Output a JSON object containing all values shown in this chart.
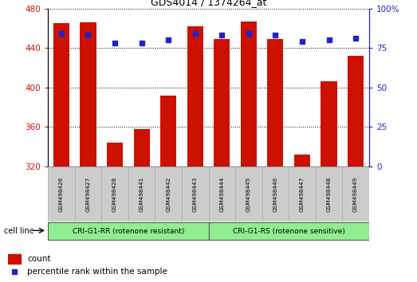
{
  "title": "GDS4014 / 1374264_at",
  "samples": [
    "GSM498426",
    "GSM498427",
    "GSM498428",
    "GSM498441",
    "GSM498442",
    "GSM498443",
    "GSM498444",
    "GSM498445",
    "GSM498446",
    "GSM498447",
    "GSM498448",
    "GSM498449"
  ],
  "counts": [
    465,
    466,
    344,
    358,
    392,
    462,
    449,
    467,
    449,
    332,
    406,
    432
  ],
  "percentile_ranks": [
    84,
    83,
    78,
    78,
    80,
    84,
    83,
    84,
    83,
    79,
    80,
    81
  ],
  "group_labels": [
    "CRI-G1-RR (rotenone resistant)",
    "CRI-G1-RS (rotenone sensitive)"
  ],
  "group_split": 6,
  "bar_color": "#CC1100",
  "dot_color": "#2222CC",
  "ylim_left": [
    320,
    480
  ],
  "ylim_right": [
    0,
    100
  ],
  "yticks_left": [
    320,
    360,
    400,
    440,
    480
  ],
  "yticks_right": [
    0,
    25,
    50,
    75,
    100
  ],
  "background_color": "#ffffff",
  "bar_width": 0.6,
  "cell_line_label": "cell line",
  "legend_count": "count",
  "legend_pct": "percentile rank within the sample",
  "green_color": "#90EE90",
  "gray_box_color": "#cccccc"
}
